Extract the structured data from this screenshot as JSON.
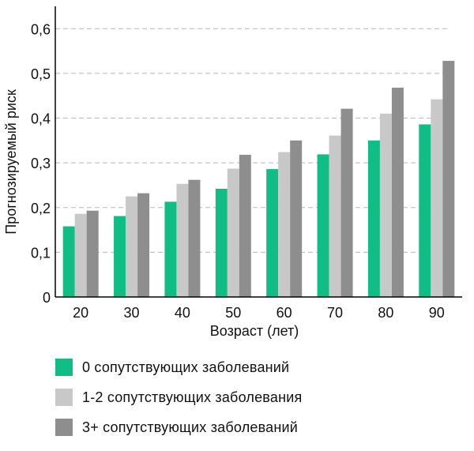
{
  "chart_data": {
    "type": "bar",
    "title": "",
    "xlabel": "Возраст (лет)",
    "ylabel": "Прогнозируемый риск",
    "categories": [
      "20",
      "30",
      "40",
      "50",
      "60",
      "70",
      "80",
      "90"
    ],
    "y_ticks": [
      "0",
      "0,1",
      "0,2",
      "0,3",
      "0,4",
      "0,5",
      "0,6"
    ],
    "ylim": [
      0,
      0.65
    ],
    "grid": "horizontal-dashed",
    "legend_position": "bottom",
    "series": [
      {
        "name": "0 сопутствующих заболеваний",
        "color": "#10bd84",
        "values": [
          0.158,
          0.181,
          0.213,
          0.242,
          0.286,
          0.319,
          0.35,
          0.386
        ]
      },
      {
        "name": "1-2 сопутствующих заболевания",
        "color": "#c8c8c8",
        "values": [
          0.186,
          0.225,
          0.253,
          0.287,
          0.324,
          0.361,
          0.41,
          0.442
        ]
      },
      {
        "name": "3+ сопутствующих заболеваний",
        "color": "#8e8e8e",
        "values": [
          0.193,
          0.232,
          0.262,
          0.318,
          0.35,
          0.421,
          0.468,
          0.528
        ]
      }
    ]
  }
}
